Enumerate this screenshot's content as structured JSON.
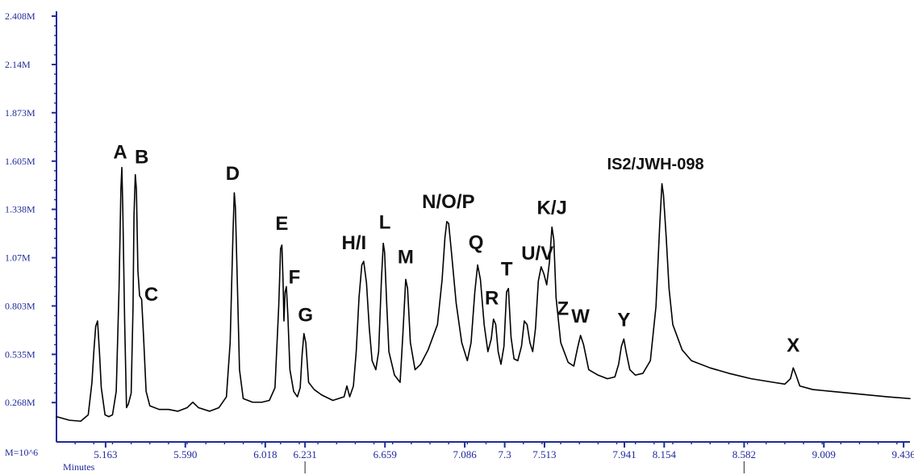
{
  "chart_data": {
    "type": "line",
    "title": "",
    "xlabel": "Minutes",
    "ylabel": "",
    "y_unit_label": "M=10^6",
    "x_ticks": [
      "5.163",
      "5.590",
      "6.018",
      "6.231",
      "6.659",
      "7.086",
      "7.3",
      "7.513",
      "7.941",
      "8.154",
      "8.582",
      "9.009",
      "9.436"
    ],
    "y_ticks": [
      "0.268M",
      "0.535M",
      "0.803M",
      "1.07M",
      "1.338M",
      "1.605M",
      "1.873M",
      "2.14M",
      "2.408M"
    ],
    "xlim": [
      4.9,
      9.47
    ],
    "ylim": [
      0.05,
      2.408
    ],
    "grid": false,
    "series": [
      {
        "baseline": 0.16,
        "points": [
          [
            4.9,
            0.19
          ],
          [
            4.97,
            0.17
          ],
          [
            5.03,
            0.165
          ],
          [
            5.07,
            0.2
          ],
          [
            5.09,
            0.38
          ],
          [
            5.1,
            0.55
          ],
          [
            5.11,
            0.69
          ],
          [
            5.12,
            0.72
          ],
          [
            5.13,
            0.55
          ],
          [
            5.14,
            0.35
          ],
          [
            5.16,
            0.2
          ],
          [
            5.18,
            0.19
          ],
          [
            5.2,
            0.2
          ],
          [
            5.22,
            0.33
          ],
          [
            5.235,
            0.9
          ],
          [
            5.245,
            1.45
          ],
          [
            5.25,
            1.57
          ],
          [
            5.255,
            1.35
          ],
          [
            5.265,
            0.72
          ],
          [
            5.275,
            0.24
          ],
          [
            5.285,
            0.26
          ],
          [
            5.3,
            0.32
          ],
          [
            5.31,
            0.8
          ],
          [
            5.315,
            1.3
          ],
          [
            5.322,
            1.53
          ],
          [
            5.328,
            1.45
          ],
          [
            5.336,
            1.0
          ],
          [
            5.345,
            0.86
          ],
          [
            5.356,
            0.84
          ],
          [
            5.366,
            0.64
          ],
          [
            5.38,
            0.33
          ],
          [
            5.4,
            0.25
          ],
          [
            5.45,
            0.23
          ],
          [
            5.5,
            0.23
          ],
          [
            5.55,
            0.22
          ],
          [
            5.6,
            0.24
          ],
          [
            5.63,
            0.27
          ],
          [
            5.66,
            0.24
          ],
          [
            5.72,
            0.22
          ],
          [
            5.77,
            0.24
          ],
          [
            5.81,
            0.3
          ],
          [
            5.83,
            0.6
          ],
          [
            5.845,
            1.2
          ],
          [
            5.852,
            1.43
          ],
          [
            5.858,
            1.35
          ],
          [
            5.868,
            0.95
          ],
          [
            5.88,
            0.45
          ],
          [
            5.9,
            0.29
          ],
          [
            5.95,
            0.27
          ],
          [
            6.0,
            0.27
          ],
          [
            6.04,
            0.28
          ],
          [
            6.07,
            0.35
          ],
          [
            6.09,
            0.8
          ],
          [
            6.1,
            1.12
          ],
          [
            6.107,
            1.14
          ],
          [
            6.113,
            0.95
          ],
          [
            6.118,
            0.72
          ],
          [
            6.124,
            0.88
          ],
          [
            6.131,
            0.91
          ],
          [
            6.139,
            0.75
          ],
          [
            6.15,
            0.45
          ],
          [
            6.17,
            0.33
          ],
          [
            6.19,
            0.3
          ],
          [
            6.205,
            0.35
          ],
          [
            6.215,
            0.53
          ],
          [
            6.225,
            0.65
          ],
          [
            6.235,
            0.6
          ],
          [
            6.25,
            0.38
          ],
          [
            6.28,
            0.34
          ],
          [
            6.32,
            0.31
          ],
          [
            6.38,
            0.28
          ],
          [
            6.44,
            0.3
          ],
          [
            6.455,
            0.36
          ],
          [
            6.47,
            0.3
          ],
          [
            6.49,
            0.36
          ],
          [
            6.505,
            0.55
          ],
          [
            6.52,
            0.85
          ],
          [
            6.535,
            1.03
          ],
          [
            6.545,
            1.05
          ],
          [
            6.56,
            0.93
          ],
          [
            6.575,
            0.68
          ],
          [
            6.59,
            0.5
          ],
          [
            6.61,
            0.45
          ],
          [
            6.625,
            0.55
          ],
          [
            6.64,
            0.95
          ],
          [
            6.65,
            1.15
          ],
          [
            6.657,
            1.1
          ],
          [
            6.668,
            0.82
          ],
          [
            6.68,
            0.55
          ],
          [
            6.71,
            0.42
          ],
          [
            6.74,
            0.38
          ],
          [
            6.755,
            0.65
          ],
          [
            6.77,
            0.95
          ],
          [
            6.78,
            0.9
          ],
          [
            6.795,
            0.6
          ],
          [
            6.82,
            0.45
          ],
          [
            6.85,
            0.48
          ],
          [
            6.89,
            0.56
          ],
          [
            6.94,
            0.7
          ],
          [
            6.965,
            0.95
          ],
          [
            6.98,
            1.18
          ],
          [
            6.99,
            1.27
          ],
          [
            7.0,
            1.26
          ],
          [
            7.015,
            1.1
          ],
          [
            7.04,
            0.82
          ],
          [
            7.07,
            0.6
          ],
          [
            7.1,
            0.5
          ],
          [
            7.12,
            0.6
          ],
          [
            7.14,
            0.88
          ],
          [
            7.155,
            1.03
          ],
          [
            7.17,
            0.95
          ],
          [
            7.19,
            0.7
          ],
          [
            7.21,
            0.55
          ],
          [
            7.228,
            0.62
          ],
          [
            7.24,
            0.73
          ],
          [
            7.252,
            0.7
          ],
          [
            7.265,
            0.55
          ],
          [
            7.28,
            0.48
          ],
          [
            7.296,
            0.58
          ],
          [
            7.31,
            0.88
          ],
          [
            7.32,
            0.9
          ],
          [
            7.334,
            0.63
          ],
          [
            7.35,
            0.51
          ],
          [
            7.37,
            0.5
          ],
          [
            7.39,
            0.58
          ],
          [
            7.405,
            0.72
          ],
          [
            7.42,
            0.7
          ],
          [
            7.435,
            0.6
          ],
          [
            7.45,
            0.55
          ],
          [
            7.465,
            0.68
          ],
          [
            7.48,
            0.94
          ],
          [
            7.495,
            1.02
          ],
          [
            7.51,
            0.98
          ],
          [
            7.525,
            0.92
          ],
          [
            7.54,
            1.05
          ],
          [
            7.553,
            1.24
          ],
          [
            7.563,
            1.17
          ],
          [
            7.575,
            0.85
          ],
          [
            7.6,
            0.6
          ],
          [
            7.64,
            0.49
          ],
          [
            7.67,
            0.47
          ],
          [
            7.69,
            0.57
          ],
          [
            7.706,
            0.64
          ],
          [
            7.722,
            0.59
          ],
          [
            7.75,
            0.45
          ],
          [
            7.8,
            0.42
          ],
          [
            7.85,
            0.4
          ],
          [
            7.89,
            0.41
          ],
          [
            7.91,
            0.48
          ],
          [
            7.925,
            0.58
          ],
          [
            7.938,
            0.62
          ],
          [
            7.95,
            0.55
          ],
          [
            7.97,
            0.45
          ],
          [
            8.0,
            0.42
          ],
          [
            8.04,
            0.43
          ],
          [
            8.08,
            0.5
          ],
          [
            8.11,
            0.8
          ],
          [
            8.13,
            1.25
          ],
          [
            8.142,
            1.48
          ],
          [
            8.15,
            1.42
          ],
          [
            8.165,
            1.18
          ],
          [
            8.18,
            0.9
          ],
          [
            8.2,
            0.7
          ],
          [
            8.25,
            0.56
          ],
          [
            8.3,
            0.5
          ],
          [
            8.4,
            0.46
          ],
          [
            8.5,
            0.43
          ],
          [
            8.62,
            0.4
          ],
          [
            8.74,
            0.38
          ],
          [
            8.8,
            0.37
          ],
          [
            8.83,
            0.4
          ],
          [
            8.845,
            0.46
          ],
          [
            8.86,
            0.42
          ],
          [
            8.88,
            0.36
          ],
          [
            8.95,
            0.34
          ],
          [
            9.05,
            0.33
          ],
          [
            9.15,
            0.32
          ],
          [
            9.25,
            0.31
          ],
          [
            9.35,
            0.3
          ],
          [
            9.47,
            0.29
          ]
        ]
      }
    ],
    "peaks": [
      {
        "label": "A",
        "x": 5.25,
        "y": 1.57
      },
      {
        "label": "B",
        "x": 5.322,
        "y": 1.53
      },
      {
        "label": "C",
        "x": 5.356,
        "y": 0.84
      },
      {
        "label": "D",
        "x": 5.852,
        "y": 1.43
      },
      {
        "label": "E",
        "x": 6.107,
        "y": 1.14
      },
      {
        "label": "F",
        "x": 6.131,
        "y": 0.91
      },
      {
        "label": "G",
        "x": 6.225,
        "y": 0.65
      },
      {
        "label": "H/I",
        "x": 6.545,
        "y": 1.05
      },
      {
        "label": "L",
        "x": 6.65,
        "y": 1.15
      },
      {
        "label": "M",
        "x": 6.77,
        "y": 0.95
      },
      {
        "label": "N/O/P",
        "x": 6.99,
        "y": 1.27
      },
      {
        "label": "Q",
        "x": 7.155,
        "y": 1.03
      },
      {
        "label": "R",
        "x": 7.24,
        "y": 0.73
      },
      {
        "label": "T",
        "x": 7.32,
        "y": 0.9
      },
      {
        "label": "U/V",
        "x": 7.51,
        "y": 0.98
      },
      {
        "label": "K/J",
        "x": 7.553,
        "y": 1.24
      },
      {
        "label": "Z",
        "x": 7.586,
        "y": 0.7
      },
      {
        "label": "W",
        "x": 7.706,
        "y": 0.64
      },
      {
        "label": "Y",
        "x": 7.938,
        "y": 0.62
      },
      {
        "label": "IS2/JWH-098",
        "x": 8.142,
        "y": 1.48
      },
      {
        "label": "X",
        "x": 8.845,
        "y": 0.46
      }
    ],
    "colors": {
      "axis": "#1f2a9a",
      "trace": "#000000",
      "label": "#111111"
    }
  }
}
